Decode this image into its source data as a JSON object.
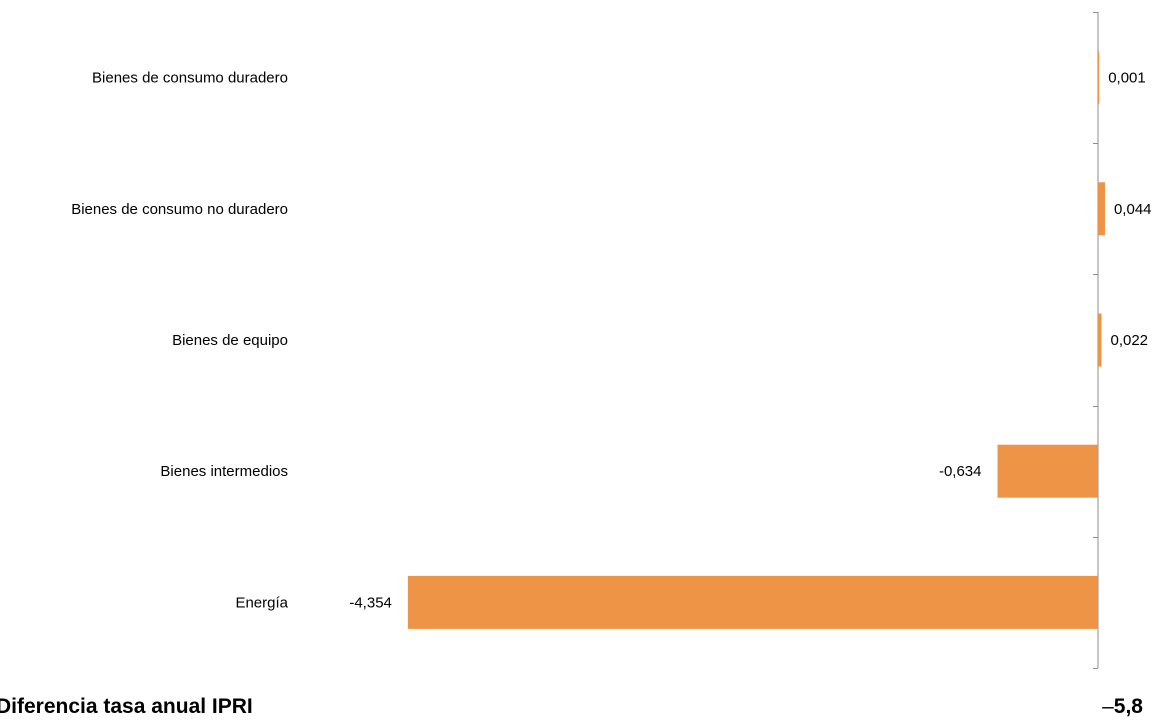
{
  "chart_data": {
    "type": "bar",
    "orientation": "horizontal",
    "categories": [
      "Bienes de consumo duradero",
      "Bienes de consumo no duradero",
      "Bienes de equipo",
      "Bienes intermedios",
      "Energía"
    ],
    "values": [
      0.001,
      0.044,
      0.022,
      -0.634,
      -4.354
    ],
    "data_labels": [
      "0,001",
      "0,044",
      "0,022",
      "-0,634",
      "-4,354"
    ],
    "bar_color": "#ED9447",
    "xlim": [
      -4.354,
      0.044
    ],
    "grid": false,
    "legend": "none"
  },
  "footer": {
    "label": "Diferencia tasa anual IPRI",
    "value_dash": "–",
    "value_number": "5,8"
  }
}
